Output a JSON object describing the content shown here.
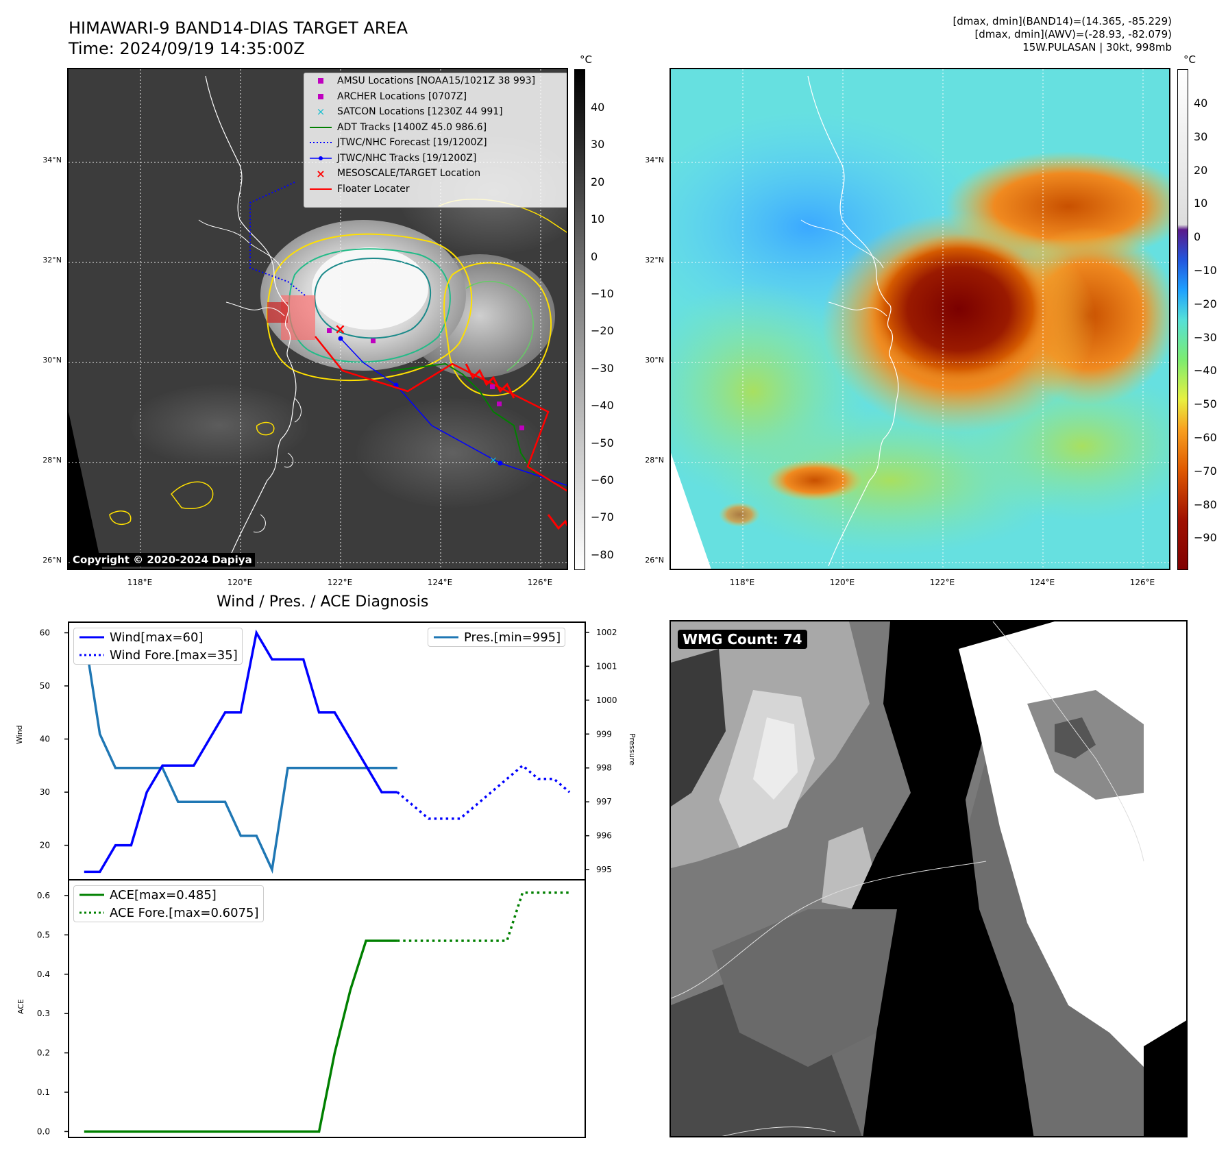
{
  "header": {
    "title_line1": "HIMAWARI-9 BAND14-DIAS TARGET AREA",
    "title_line2": "Time: 2024/09/19 14:35:00Z",
    "stats_line1": "[dmax, dmin](BAND14)=(14.365, -85.229)",
    "stats_line2": "[dmax, dmin](AWV)=(-28.93, -82.079)",
    "stats_line3": "15W.PULASAN | 30kt, 998mb"
  },
  "map_axes": {
    "lat_labels": [
      "34°N",
      "32°N",
      "30°N",
      "28°N",
      "26°N"
    ],
    "lon_labels": [
      "118°E",
      "120°E",
      "122°E",
      "124°E",
      "126°E"
    ]
  },
  "colorbar_left": {
    "unit": "°C",
    "ticks": [
      "40",
      "30",
      "20",
      "10",
      "0",
      "−10",
      "−20",
      "−30",
      "−40",
      "−50",
      "−60",
      "−70",
      "−80"
    ]
  },
  "colorbar_right": {
    "unit": "°C",
    "ticks": [
      "40",
      "30",
      "20",
      "10",
      "0",
      "−10",
      "−20",
      "−30",
      "−40",
      "−50",
      "−60",
      "−70",
      "−80",
      "−90"
    ]
  },
  "map_legend": [
    {
      "label": "AMSU Locations [NOAA15/1021Z 38 993]",
      "symbol": "square",
      "color": "#bf00bf"
    },
    {
      "label": "ARCHER Locations [0707Z]",
      "symbol": "square",
      "color": "#bf00bf"
    },
    {
      "label": "SATCON Locations [1230Z 44 991]",
      "symbol": "x",
      "color": "#17becf"
    },
    {
      "label": "ADT Tracks [1400Z 45.0 986.6]",
      "symbol": "line",
      "color": "#008000"
    },
    {
      "label": "JTWC/NHC Forecast [19/1200Z]",
      "symbol": "dotted",
      "color": "#0000ff"
    },
    {
      "label": "JTWC/NHC Tracks [19/1200Z]",
      "symbol": "line-dot",
      "color": "#0000ff"
    },
    {
      "label": "MESOSCALE/TARGET Location",
      "symbol": "x",
      "color": "#ff0000"
    },
    {
      "label": "Floater Locater",
      "symbol": "line",
      "color": "#ff0000"
    }
  ],
  "copyright": "Copyright © 2020-2024 Dapiya",
  "wmg_label": "WMG Count: 74",
  "colors": {
    "wind": "#0000ff",
    "pres": "#1f77b4",
    "ace": "#008000"
  },
  "chart_data": [
    {
      "type": "line",
      "title": "Wind / Pres. / ACE Diagnosis",
      "ylabel": "Wind",
      "ylim": [
        13.5,
        62
      ],
      "yticks": [
        20,
        30,
        40,
        50,
        60
      ],
      "y2label": "Pressure",
      "y2lim": [
        994.7,
        1002.3
      ],
      "y2ticks": [
        995,
        996,
        997,
        998,
        999,
        1000,
        1001,
        1002
      ],
      "xlim": [
        0,
        33
      ],
      "series": [
        {
          "name": "Wind[max=60]",
          "style": "solid",
          "axis": "left",
          "x": [
            1,
            2,
            3,
            4,
            5,
            6,
            7,
            8,
            9,
            10,
            11,
            12,
            13,
            14,
            15,
            16,
            17,
            18,
            19,
            20,
            21
          ],
          "values": [
            15,
            15,
            20,
            20,
            30,
            35,
            35,
            35,
            40,
            45,
            45,
            60,
            55,
            55,
            55,
            45,
            45,
            40,
            35,
            30,
            30
          ]
        },
        {
          "name": "Wind Fore.[max=35]",
          "style": "dotted",
          "axis": "left",
          "x": [
            21,
            22,
            23,
            24,
            25,
            26,
            27,
            28,
            29,
            30,
            31,
            32
          ],
          "values": [
            30,
            27.5,
            25,
            25,
            25,
            27.5,
            30,
            32.5,
            35,
            32.5,
            32.5,
            30
          ]
        },
        {
          "name": "Pres.[min=995]",
          "style": "solid",
          "axis": "right",
          "x": [
            1,
            2,
            3,
            4,
            5,
            6,
            7,
            8,
            9,
            10,
            11,
            12,
            13,
            14,
            15,
            16,
            17,
            18,
            19,
            20,
            21
          ],
          "values": [
            1002,
            999,
            998,
            998,
            998,
            998,
            997,
            997,
            997,
            997,
            996,
            996,
            995,
            998,
            998,
            998,
            998,
            998,
            998,
            998,
            998
          ]
        }
      ]
    },
    {
      "type": "line",
      "ylabel": "ACE",
      "ylim": [
        -0.015,
        0.64
      ],
      "yticks": [
        0.0,
        0.1,
        0.2,
        0.3,
        0.4,
        0.5,
        0.6
      ],
      "ytick_labels": [
        "0.0",
        "0.1",
        "0.2",
        "0.3",
        "0.4",
        "0.5",
        "0.6"
      ],
      "xlim": [
        0,
        33
      ],
      "series": [
        {
          "name": "ACE[max=0.485]",
          "style": "solid",
          "x": [
            1,
            16,
            17,
            18,
            19,
            20,
            21
          ],
          "values": [
            0.0,
            0.0,
            0.2,
            0.36,
            0.485,
            0.485,
            0.485
          ]
        },
        {
          "name": "ACE Fore.[max=0.6075]",
          "style": "dotted",
          "x": [
            21,
            28,
            29,
            30,
            31,
            32
          ],
          "values": [
            0.485,
            0.485,
            0.6075,
            0.6075,
            0.6075,
            0.6075
          ]
        }
      ]
    }
  ]
}
